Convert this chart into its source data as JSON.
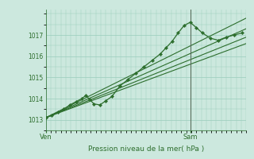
{
  "bg_color": "#cce8de",
  "grid_color": "#99ccbb",
  "line_color": "#2d6e2d",
  "marker_color": "#2d6e2d",
  "text_color": "#2d6e2d",
  "xlabel": "Pression niveau de la mer( hPa )",
  "ylim": [
    1012.5,
    1018.2
  ],
  "yticks": [
    1013,
    1014,
    1015,
    1016,
    1017
  ],
  "xtick_labels": [
    "Ven",
    "Sam"
  ],
  "xtick_pos": [
    0.0,
    0.72
  ],
  "vline_x": 0.72,
  "figsize": [
    3.2,
    2.0
  ],
  "dpi": 100,
  "series": {
    "main": {
      "x": [
        0.0,
        0.03,
        0.06,
        0.09,
        0.12,
        0.15,
        0.18,
        0.2,
        0.22,
        0.24,
        0.27,
        0.3,
        0.33,
        0.37,
        0.41,
        0.45,
        0.49,
        0.53,
        0.57,
        0.6,
        0.63,
        0.66,
        0.69,
        0.72,
        0.75,
        0.78,
        0.82,
        0.86,
        0.9,
        0.94,
        0.98
      ],
      "y": [
        1013.1,
        1013.2,
        1013.35,
        1013.5,
        1013.7,
        1013.85,
        1014.0,
        1014.15,
        1013.95,
        1013.75,
        1013.7,
        1013.9,
        1014.1,
        1014.6,
        1014.9,
        1015.2,
        1015.5,
        1015.8,
        1016.1,
        1016.4,
        1016.7,
        1017.1,
        1017.45,
        1017.6,
        1017.35,
        1017.1,
        1016.85,
        1016.75,
        1016.9,
        1017.0,
        1017.1
      ]
    },
    "trend1": {
      "x": [
        0.0,
        1.0
      ],
      "y": [
        1013.1,
        1017.8
      ]
    },
    "trend2": {
      "x": [
        0.0,
        1.0
      ],
      "y": [
        1013.1,
        1017.3
      ]
    },
    "trend3": {
      "x": [
        0.0,
        1.0
      ],
      "y": [
        1013.1,
        1016.9
      ]
    },
    "trend4": {
      "x": [
        0.0,
        1.0
      ],
      "y": [
        1013.1,
        1016.6
      ]
    }
  }
}
